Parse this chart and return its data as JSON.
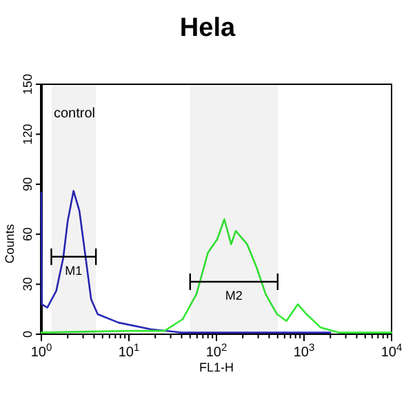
{
  "chart_data": {
    "type": "line",
    "title": "Hela",
    "xlabel": "FL1-H",
    "ylabel": "Counts",
    "log": "x",
    "xlim": [
      1,
      10000
    ],
    "ylim": [
      0,
      150
    ],
    "yticks": [
      0,
      30,
      60,
      90,
      120,
      150
    ],
    "xticks": [
      {
        "value": 1,
        "label": "10$^{0}$"
      },
      {
        "value": 2,
        "label": null
      },
      {
        "value": 3,
        "label": null
      },
      {
        "value": 4,
        "label": null
      },
      {
        "value": 5,
        "label": null
      },
      {
        "value": 6,
        "label": null
      },
      {
        "value": 7,
        "label": null
      },
      {
        "value": 8,
        "label": null
      },
      {
        "value": 9,
        "label": null
      },
      {
        "value": 10,
        "label": "10$^{1}$"
      },
      {
        "value": 20,
        "label": null
      },
      {
        "value": 30,
        "label": null
      },
      {
        "value": 40,
        "label": null
      },
      {
        "value": 50,
        "label": null
      },
      {
        "value": 60,
        "label": null
      },
      {
        "value": 70,
        "label": null
      },
      {
        "value": 80,
        "label": null
      },
      {
        "value": 90,
        "label": null
      },
      {
        "value": 100,
        "label": "10$^{2}$"
      },
      {
        "value": 200,
        "label": null
      },
      {
        "value": 300,
        "label": null
      },
      {
        "value": 400,
        "label": null
      },
      {
        "value": 500,
        "label": null
      },
      {
        "value": 600,
        "label": null
      },
      {
        "value": 700,
        "label": null
      },
      {
        "value": 800,
        "label": null
      },
      {
        "value": 900,
        "label": null
      },
      {
        "value": 1000,
        "label": "10$^{3}$"
      },
      {
        "value": 2000,
        "label": null
      },
      {
        "value": 3000,
        "label": null
      },
      {
        "value": 4000,
        "label": null
      },
      {
        "value": 5000,
        "label": null
      },
      {
        "value": 6000,
        "label": null
      },
      {
        "value": 7000,
        "label": null
      },
      {
        "value": 8000,
        "label": null
      },
      {
        "value": 9000,
        "label": null
      },
      {
        "value": 10000,
        "label": "10$^{4}$"
      }
    ],
    "series": [
      {
        "color": "#2828b8",
        "x": [
          1,
          1.01,
          1.17,
          1.48,
          1.78,
          2.0,
          2.33,
          2.72,
          3.26,
          3.7,
          4.4,
          7.6,
          17.7,
          40,
          100,
          1000,
          2000
        ],
        "values": [
          85,
          18,
          16,
          26,
          46,
          68,
          86,
          74,
          43,
          21,
          12,
          7,
          3,
          1,
          1,
          1,
          1
        ]
      },
      {
        "color": "#33e833",
        "x": [
          1,
          10,
          25.5,
          41,
          59,
          80,
          102,
          123,
          147,
          166,
          224,
          288,
          365,
          492,
          630,
          850,
          1070,
          1550,
          2500,
          10000
        ],
        "values": [
          1,
          2,
          2,
          9,
          24,
          49,
          57,
          69,
          54,
          62,
          54,
          40,
          24,
          12,
          8,
          18,
          12,
          4,
          1,
          1
        ]
      }
    ],
    "bands": [
      {
        "axis": "x",
        "from": 1.3,
        "to": 4.2,
        "label": "M1"
      },
      {
        "axis": "x",
        "from": 50,
        "to": 500,
        "label": "M2"
      }
    ],
    "annotations": [
      "control"
    ]
  }
}
